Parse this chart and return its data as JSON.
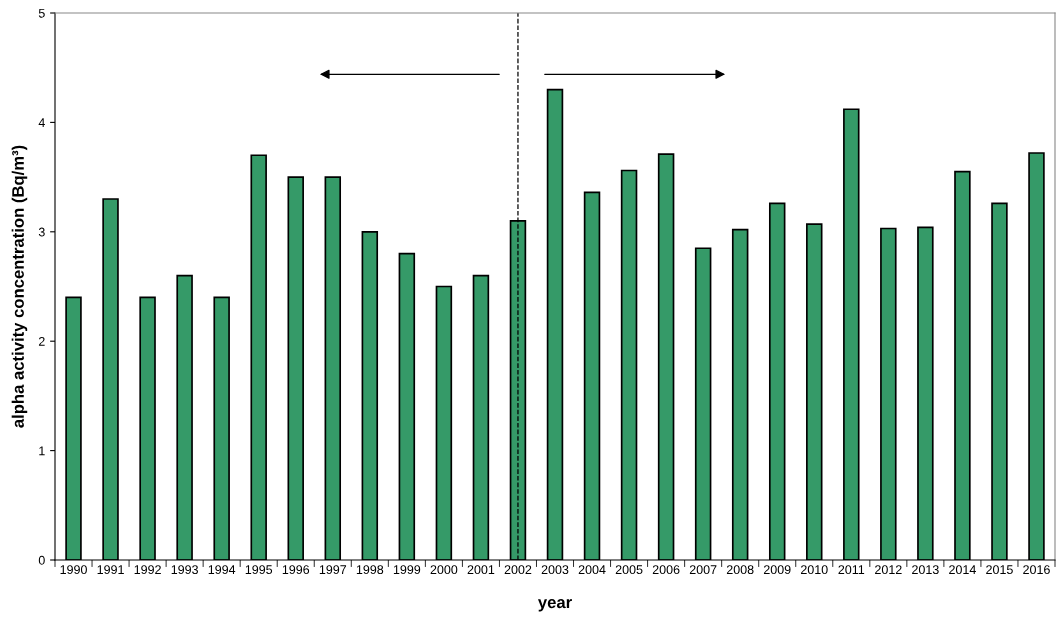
{
  "chart_data": {
    "type": "bar",
    "xlabel": "year",
    "ylabel": "alpha activity concentration (Bq/m³)",
    "categories": [
      "1990",
      "1991",
      "1992",
      "1993",
      "1994",
      "1995",
      "1996",
      "1997",
      "1998",
      "1999",
      "2000",
      "2001",
      "2002",
      "2003",
      "2004",
      "2005",
      "2006",
      "2007",
      "2008",
      "2009",
      "2010",
      "2011",
      "2012",
      "2013",
      "2014",
      "2015",
      "2016"
    ],
    "values": [
      2.4,
      3.3,
      2.4,
      2.6,
      2.4,
      3.7,
      3.5,
      3.5,
      3.0,
      2.8,
      2.5,
      2.6,
      3.1,
      4.3,
      3.36,
      3.56,
      3.71,
      2.85,
      3.02,
      3.26,
      3.07,
      4.12,
      3.03,
      3.04,
      3.55,
      3.26,
      3.72
    ],
    "color": "#359a68",
    "ylim": [
      0,
      5
    ],
    "yticks": [
      0,
      1,
      2,
      3,
      4,
      5
    ],
    "ref_lines": [
      {
        "axis": "x",
        "value": "2002",
        "line_style": "dashed",
        "color": "#000000"
      }
    ],
    "grid": false,
    "legend": false
  }
}
